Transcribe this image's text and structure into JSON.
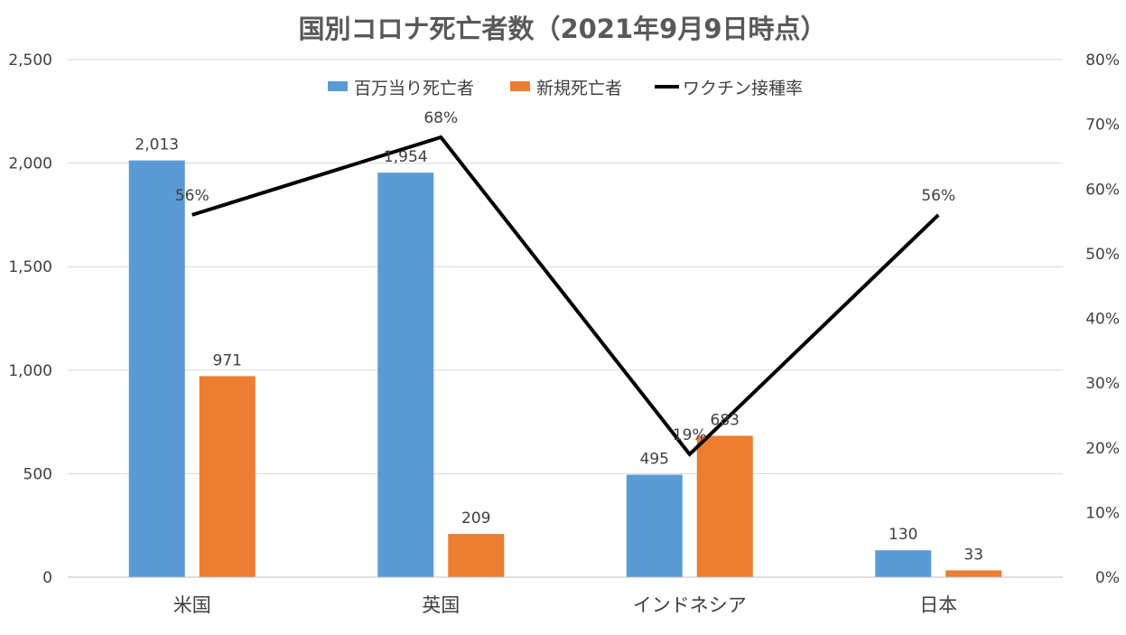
{
  "chart_data": {
    "type": "bar",
    "title": "国別コロナ死亡者数（2021年9月9日時点）",
    "categories": [
      "米国",
      "英国",
      "インドネシア",
      "日本"
    ],
    "series": [
      {
        "name": "百万当り死亡者",
        "type": "bar",
        "axis": "left",
        "color": "#5B9BD5",
        "values": [
          2013,
          1954,
          495,
          130
        ],
        "labels": [
          "2,013",
          "1,954",
          "495",
          "130"
        ]
      },
      {
        "name": "新規死亡者",
        "type": "bar",
        "axis": "left",
        "color": "#ED7D31",
        "values": [
          971,
          209,
          683,
          33
        ],
        "labels": [
          "971",
          "209",
          "683",
          "33"
        ]
      },
      {
        "name": "ワクチン接種率",
        "type": "line",
        "axis": "right",
        "color": "#000000",
        "values": [
          56,
          68,
          19,
          56
        ],
        "labels": [
          "56%",
          "68%",
          "19%",
          "56%"
        ]
      }
    ],
    "y_left": {
      "ylim": [
        0,
        2500
      ],
      "ticks": [
        0,
        500,
        1000,
        1500,
        2000,
        2500
      ],
      "tick_labels": [
        "0",
        "500",
        "1,000",
        "1,500",
        "2,000",
        "2,500"
      ]
    },
    "y_right": {
      "ylim": [
        0,
        80
      ],
      "ticks": [
        0,
        10,
        20,
        30,
        40,
        50,
        60,
        70,
        80
      ],
      "tick_labels": [
        "0%",
        "10%",
        "20%",
        "30%",
        "40%",
        "50%",
        "60%",
        "70%",
        "80%"
      ]
    },
    "grid": true,
    "legend_position": "top"
  }
}
